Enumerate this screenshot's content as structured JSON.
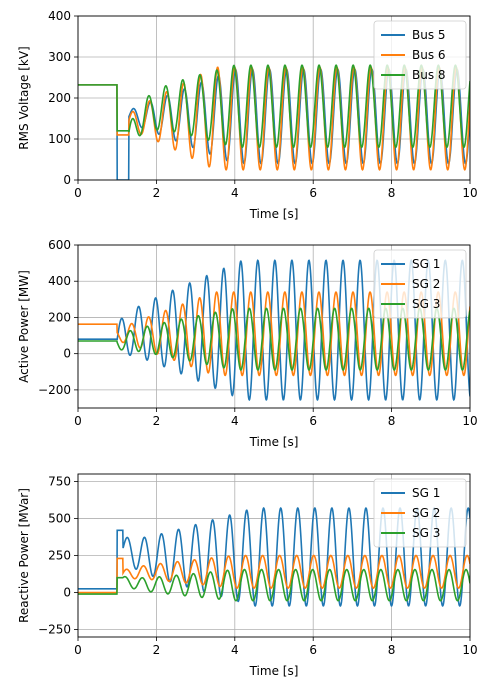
{
  "chart_data": [
    {
      "type": "line",
      "xlabel": "Time [s]",
      "ylabel": "RMS Voltage [kV]",
      "xlim": [
        0,
        10
      ],
      "ylim": [
        0,
        400
      ],
      "xticks": [
        "0",
        "2",
        "4",
        "6",
        "8",
        "10"
      ],
      "yticks": [
        "0",
        "100",
        "200",
        "300",
        "400"
      ],
      "grid": true,
      "legend_position": "top-right",
      "series": [
        {
          "name": "Bus 5",
          "color": "#1f77b4",
          "pre_value": 232,
          "fault_value": 0,
          "fault_end": 1.3,
          "post_value": 155,
          "osc_center": 155,
          "osc_amp_start": 15,
          "osc_amp_end": 115,
          "freq_hz": 2.3,
          "phase": 0.0,
          "grow_end": 4.0
        },
        {
          "name": "Bus 6",
          "color": "#ff7f0e",
          "pre_value": 232,
          "fault_value": 110,
          "fault_end": 1.3,
          "post_value": 140,
          "osc_center": 150,
          "osc_amp_start": 20,
          "osc_amp_end": 125,
          "freq_hz": 2.3,
          "phase": 0.3,
          "grow_end": 3.5
        },
        {
          "name": "Bus 8",
          "color": "#2ca02c",
          "pre_value": 232,
          "fault_value": 120,
          "fault_end": 1.3,
          "post_value": 100,
          "osc_center": 180,
          "osc_amp_start": 30,
          "osc_amp_end": 100,
          "freq_hz": 2.3,
          "phase": 0.6,
          "grow_end": 4.0
        }
      ]
    },
    {
      "type": "line",
      "xlabel": "Time [s]",
      "ylabel": "Active Power [MW]",
      "xlim": [
        0,
        10
      ],
      "ylim": [
        -300,
        600
      ],
      "xticks": [
        "0",
        "2",
        "4",
        "6",
        "8",
        "10"
      ],
      "yticks": [
        "−200",
        "0",
        "200",
        "400",
        "600"
      ],
      "grid": true,
      "legend_position": "top-right",
      "series": [
        {
          "name": "SG 1",
          "color": "#1f77b4",
          "pre_value": 80,
          "fault_value": 60,
          "fault_end": 1.0,
          "post_value": 80,
          "osc_center": 130,
          "osc_amp_start": 90,
          "osc_amp_end": 385,
          "freq_hz": 2.3,
          "phase": 0.0,
          "grow_end": 4.2
        },
        {
          "name": "SG 2",
          "color": "#ff7f0e",
          "pre_value": 163,
          "fault_value": 40,
          "fault_end": 1.0,
          "post_value": 100,
          "osc_center": 110,
          "osc_amp_start": 30,
          "osc_amp_end": 230,
          "freq_hz": 2.3,
          "phase": 2.6,
          "grow_end": 3.5
        },
        {
          "name": "SG 3",
          "color": "#2ca02c",
          "pre_value": 70,
          "fault_value": 20,
          "fault_end": 1.0,
          "post_value": 60,
          "osc_center": 80,
          "osc_amp_start": 40,
          "osc_amp_end": 170,
          "freq_hz": 2.3,
          "phase": 3.1,
          "grow_end": 4.0
        }
      ]
    },
    {
      "type": "line",
      "xlabel": "Time [s]",
      "ylabel": "Reactive Power [MVar]",
      "xlim": [
        0,
        10
      ],
      "ylim": [
        -300,
        800
      ],
      "xticks": [
        "0",
        "2",
        "4",
        "6",
        "8",
        "10"
      ],
      "yticks": [
        "−250",
        "0",
        "250",
        "500",
        "750"
      ],
      "grid": true,
      "legend_position": "top-right",
      "series": [
        {
          "name": "SG 1",
          "color": "#1f77b4",
          "pre_value": 25,
          "fault_value": 420,
          "fault_end": 1.15,
          "post_value": 300,
          "osc_center": 240,
          "osc_amp_start": 80,
          "osc_amp_end": 330,
          "freq_hz": 2.3,
          "phase": 0.0,
          "grow_end": 4.5
        },
        {
          "name": "SG 2",
          "color": "#ff7f0e",
          "pre_value": 0,
          "fault_value": 230,
          "fault_end": 1.15,
          "post_value": 120,
          "osc_center": 140,
          "osc_amp_start": 30,
          "osc_amp_end": 110,
          "freq_hz": 2.3,
          "phase": 0.4,
          "grow_end": 4.0
        },
        {
          "name": "SG 3",
          "color": "#2ca02c",
          "pre_value": -10,
          "fault_value": 100,
          "fault_end": 1.15,
          "post_value": 80,
          "osc_center": 50,
          "osc_amp_start": 30,
          "osc_amp_end": 105,
          "freq_hz": 2.3,
          "phase": 0.8,
          "grow_end": 4.0
        }
      ]
    }
  ]
}
